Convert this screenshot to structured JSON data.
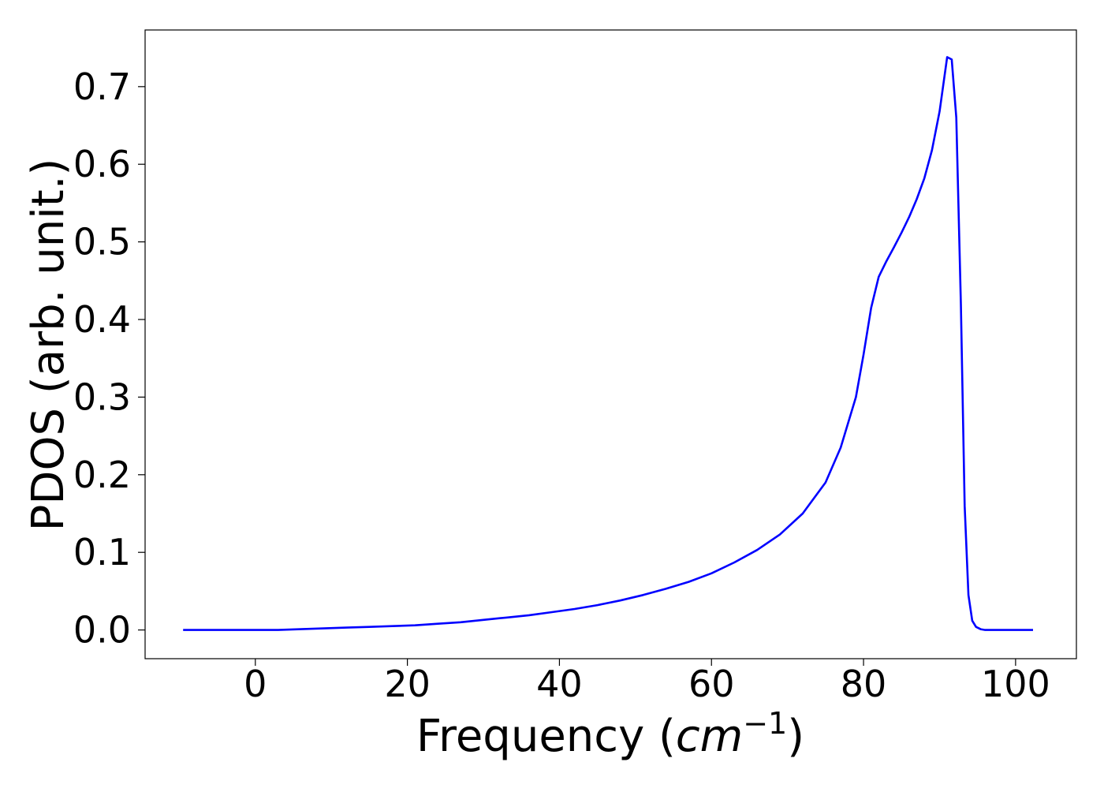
{
  "chart_data": {
    "type": "line",
    "xlabel": {
      "prefix": "Frequency (",
      "math_base": "cm",
      "math_sup": "−1",
      "suffix": ")"
    },
    "ylabel": "PDOS (arb. unit.)",
    "xlim": [
      -14.5,
      108
    ],
    "ylim": [
      -0.037,
      0.773
    ],
    "xticks": [
      0,
      20,
      40,
      60,
      80,
      100
    ],
    "xtick_labels": [
      "0",
      "20",
      "40",
      "60",
      "80",
      "100"
    ],
    "yticks": [
      0.0,
      0.1,
      0.2,
      0.3,
      0.4,
      0.5,
      0.6,
      0.7
    ],
    "ytick_labels": [
      "0.0",
      "0.1",
      "0.2",
      "0.3",
      "0.4",
      "0.5",
      "0.6",
      "0.7"
    ],
    "grid": false,
    "series": [
      {
        "color": "#0000ff",
        "x": [
          -9.5,
          -5,
          0,
          3,
          6,
          9,
          12,
          15,
          18,
          21,
          24,
          27,
          30,
          33,
          36,
          39,
          42,
          45,
          48,
          51,
          54,
          57,
          60,
          63,
          66,
          69,
          72,
          75,
          77,
          79,
          80,
          81,
          82,
          83,
          84,
          85,
          86,
          87,
          88,
          89,
          90,
          91,
          91.6,
          92.2,
          92.8,
          93.3,
          93.8,
          94.3,
          94.8,
          95.4,
          96,
          97,
          100,
          102.3
        ],
        "y": [
          0.0,
          0.0,
          0.0,
          0.0,
          0.001,
          0.002,
          0.003,
          0.004,
          0.005,
          0.006,
          0.008,
          0.01,
          0.013,
          0.016,
          0.019,
          0.023,
          0.027,
          0.032,
          0.038,
          0.045,
          0.053,
          0.062,
          0.073,
          0.087,
          0.103,
          0.123,
          0.15,
          0.19,
          0.235,
          0.3,
          0.355,
          0.415,
          0.455,
          0.475,
          0.493,
          0.512,
          0.532,
          0.555,
          0.582,
          0.618,
          0.668,
          0.738,
          0.735,
          0.66,
          0.42,
          0.16,
          0.045,
          0.012,
          0.004,
          0.001,
          0.0,
          0.0,
          0.0,
          0.0
        ]
      }
    ]
  }
}
